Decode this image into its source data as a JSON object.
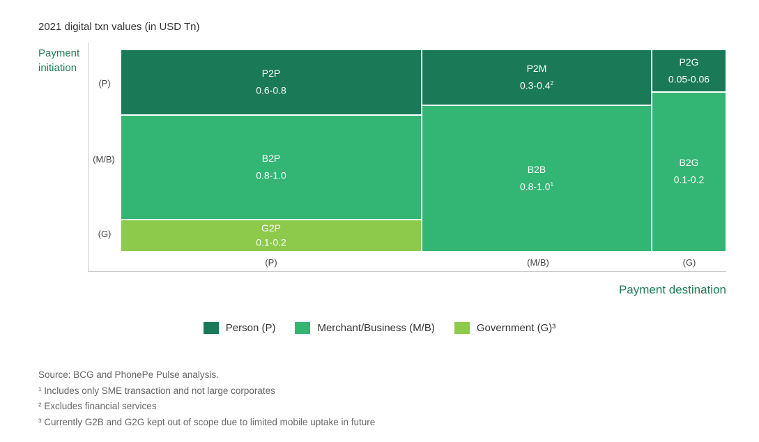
{
  "chart_data": {
    "type": "mosaic",
    "title": "2021 digital txn values (in USD Tn)",
    "ylabel": "Payment initiation",
    "xlabel": "Payment destination",
    "y_ticks": [
      "(P)",
      "(M/B)",
      "(G)"
    ],
    "x_ticks": [
      "(P)",
      "(M/B)",
      "(G)"
    ],
    "legend": [
      {
        "label": "Person (P)",
        "color": "#1a7a57"
      },
      {
        "label": "Merchant/Business (M/B)",
        "color": "#33b574"
      },
      {
        "label": "Government (G)³",
        "color": "#8dc94a"
      }
    ],
    "cells": [
      {
        "label": "P2P",
        "value": "0.6-0.8",
        "sup": "",
        "initiation": "P",
        "destination": "P",
        "color": "#1a7a57"
      },
      {
        "label": "B2P",
        "value": "0.8-1.0",
        "sup": "",
        "initiation": "M/B",
        "destination": "P",
        "color": "#33b574"
      },
      {
        "label": "G2P",
        "value": "0.1-0.2",
        "sup": "",
        "initiation": "G",
        "destination": "P",
        "color": "#8dc94a"
      },
      {
        "label": "P2M",
        "value": "0.3-0.4",
        "sup": "2",
        "initiation": "P",
        "destination": "M/B",
        "color": "#1a7a57"
      },
      {
        "label": "B2B",
        "value": "0.8-1.0",
        "sup": "1",
        "initiation": "M/B",
        "destination": "M/B",
        "color": "#33b574"
      },
      {
        "label": "P2G",
        "value": "0.05-0.06",
        "sup": "",
        "initiation": "P",
        "destination": "G",
        "color": "#1a7a57"
      },
      {
        "label": "B2G",
        "value": "0.1-0.2",
        "sup": "",
        "initiation": "M/B",
        "destination": "G",
        "color": "#33b574"
      }
    ]
  },
  "notes": {
    "source_label": "Source:",
    "source_text": " BCG and PhonePe Pulse analysis.",
    "note1": "¹ Includes only SME transaction and not large corporates",
    "note2": "² Excludes financial services",
    "note3": "³ Currently G2B and G2G kept out of scope due to limited mobile uptake in future"
  }
}
